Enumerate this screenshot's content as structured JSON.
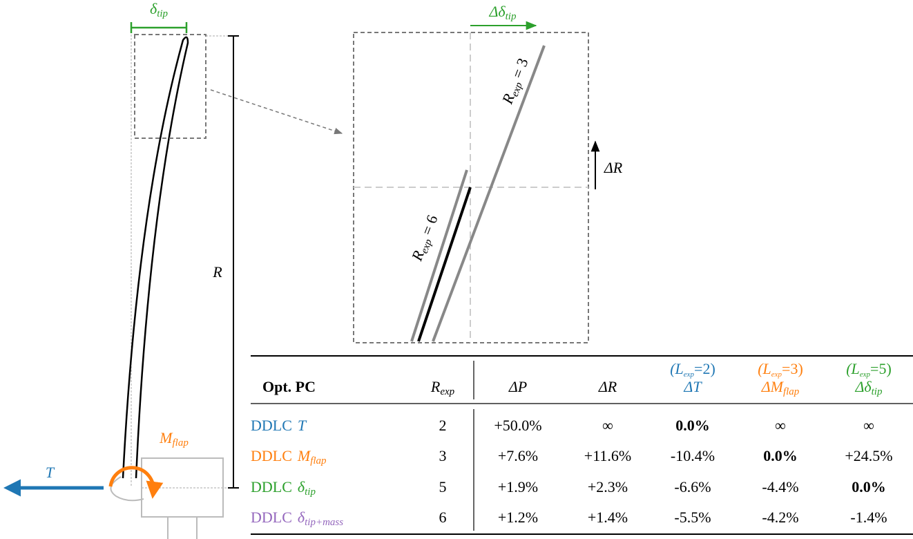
{
  "diagram": {
    "tip_deflection": {
      "base": "δ",
      "sub": "tip"
    },
    "tip_deflection_change": {
      "base": "Δδ",
      "sub": "tip"
    },
    "radius": "R",
    "radius_change": "ΔR",
    "flap_moment": {
      "base": "M",
      "sub": "flap"
    },
    "thrust": "T",
    "curve_labels": [
      {
        "base": "R",
        "sub": "exp",
        "rest": " = 3"
      },
      {
        "base": "R",
        "sub": "exp",
        "rest": " = 6"
      }
    ]
  },
  "table": {
    "columns": [
      {
        "label": "Opt. PC"
      },
      {
        "label": {
          "base": "R",
          "sub": "exp"
        }
      },
      {
        "label": "ΔP"
      },
      {
        "label": "ΔR"
      },
      {
        "label": "ΔT",
        "note": {
          "base": "(L",
          "sub": "exp",
          "rest": "=2)"
        },
        "color": "#1f77b4"
      },
      {
        "label": {
          "base": "ΔM",
          "sub": "flap"
        },
        "note": {
          "base": "(L",
          "sub": "exp",
          "rest": "=3)"
        },
        "color": "#ff7f0e"
      },
      {
        "label": {
          "base": "Δδ",
          "sub": "tip"
        },
        "note": {
          "base": "(L",
          "sub": "exp",
          "rest": "=5)"
        },
        "color": "#2ca02c"
      }
    ],
    "rows": [
      {
        "method": "DDLC",
        "target": "T",
        "color": "#1f77b4",
        "r_exp": 2,
        "cells": [
          "+50.0%",
          "∞",
          "0.0%",
          "∞",
          "∞"
        ],
        "bold": 2
      },
      {
        "method": "DDLC",
        "target": {
          "base": "M",
          "sub": "flap"
        },
        "color": "#ff7f0e",
        "r_exp": 3,
        "cells": [
          "+7.6%",
          "+11.6%",
          "-10.4%",
          "0.0%",
          "+24.5%"
        ],
        "bold": 3
      },
      {
        "method": "DDLC",
        "target": {
          "base": "δ",
          "sub": "tip"
        },
        "color": "#2ca02c",
        "r_exp": 5,
        "cells": [
          "+1.9%",
          "+2.3%",
          "-6.6%",
          "-4.4%",
          "0.0%"
        ],
        "bold": 4
      },
      {
        "method": "DDLC",
        "target": {
          "base": "δ",
          "sub": "tip+mass"
        },
        "color": "#9467bd",
        "r_exp": 6,
        "cells": [
          "+1.2%",
          "+1.4%",
          "-5.5%",
          "-4.2%",
          "-1.4%"
        ]
      }
    ]
  }
}
